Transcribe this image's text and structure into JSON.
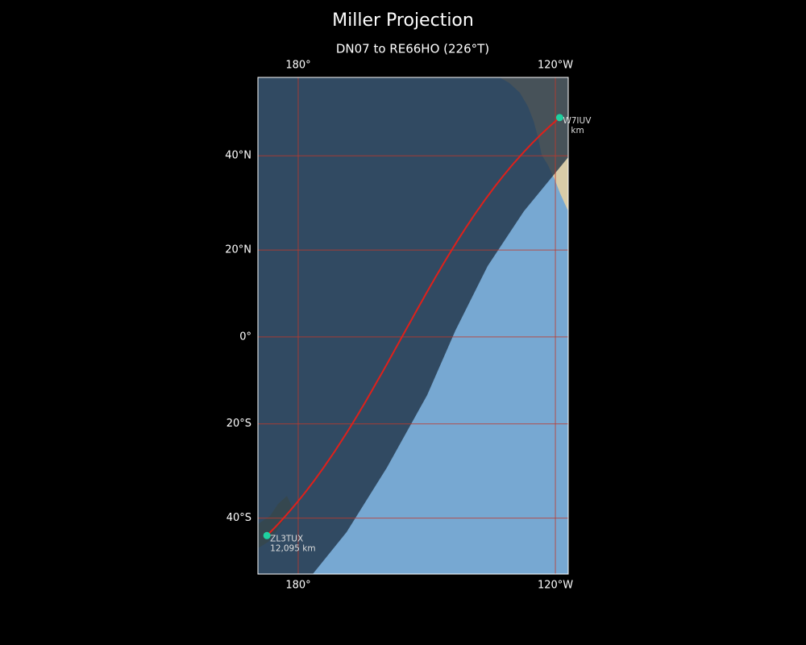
{
  "title": "Miller Projection",
  "subtitle": "DN07 to RE66HO (226°T)",
  "map": {
    "projection": "miller",
    "lonlim": [
      170.6,
      243
    ],
    "latlim": [
      -50.5,
      54.4
    ],
    "lonticks": [
      {
        "value": 180,
        "label": "180°"
      },
      {
        "value": 240,
        "label": "120°W"
      }
    ],
    "latticks": [
      {
        "value": 40,
        "label": "40°N"
      },
      {
        "value": 20,
        "label": "20°N"
      },
      {
        "value": 0,
        "label": "0°"
      },
      {
        "value": -20,
        "label": "20°S"
      },
      {
        "value": -40,
        "label": "40°S"
      }
    ],
    "grid_color": "#c0392b",
    "path_color": "#e0201a",
    "marker_color": "#1fd1a0",
    "points": [
      {
        "lat": 47.3,
        "lon": 241,
        "label": "W7IUV",
        "sublabel": "km"
      },
      {
        "lat": -43.4,
        "lon": 172.7,
        "label": "ZL3TUX",
        "sublabel": "12,095 km"
      }
    ]
  }
}
